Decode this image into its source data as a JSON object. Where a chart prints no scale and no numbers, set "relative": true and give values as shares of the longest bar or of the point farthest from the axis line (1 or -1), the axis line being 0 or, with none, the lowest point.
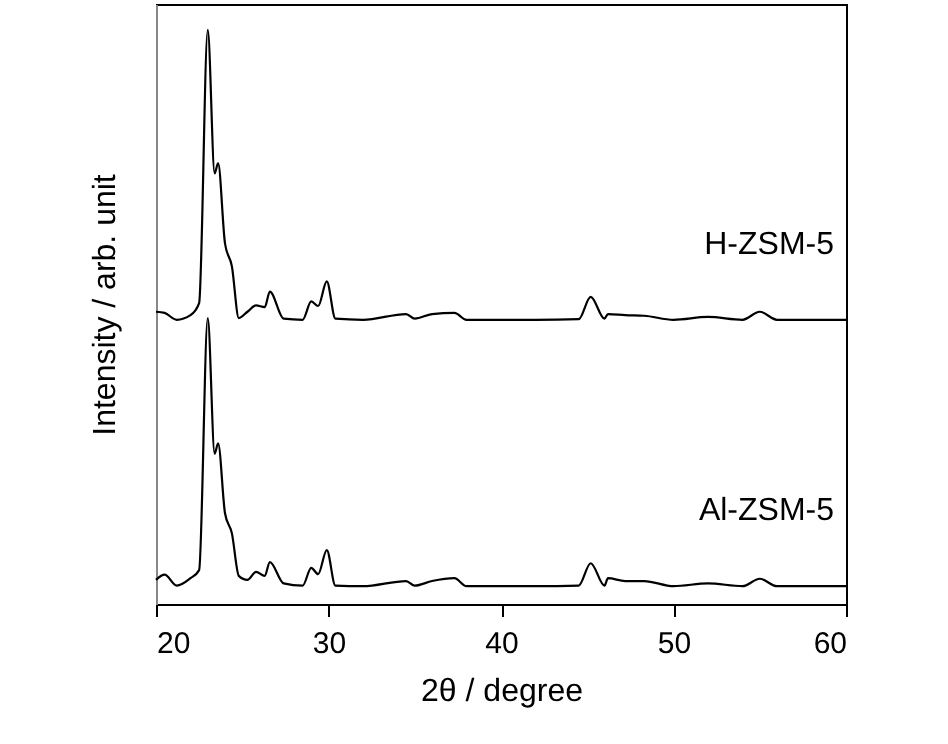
{
  "chart_data": {
    "type": "line",
    "xlabel": "2θ / degree",
    "ylabel": "Intensity / arb. unit",
    "relative": true,
    "xlim": [
      20,
      60
    ],
    "xticks": [
      20,
      30,
      40,
      50,
      60
    ],
    "series": [
      {
        "name": "H-ZSM-5",
        "color": "#000000",
        "x": [
          20,
          20.5,
          21.2,
          22,
          22.5,
          23,
          23.4,
          23.6,
          24,
          24.4,
          24.8,
          25.3,
          25.8,
          26.3,
          26.6,
          27.4,
          28.5,
          29,
          29.4,
          29.9,
          30.4,
          32,
          34.5,
          35,
          36,
          37.3,
          38,
          42,
          44.5,
          45.2,
          46,
          46.2,
          47.2,
          48.3,
          50,
          52,
          54,
          55,
          56,
          60
        ],
        "values": [
          0.509,
          0.507,
          0.495,
          0.503,
          0.524,
          1.0,
          0.75,
          0.768,
          0.628,
          0.588,
          0.498,
          0.509,
          0.52,
          0.517,
          0.544,
          0.497,
          0.495,
          0.527,
          0.519,
          0.562,
          0.497,
          0.495,
          0.505,
          0.497,
          0.505,
          0.507,
          0.495,
          0.495,
          0.496,
          0.535,
          0.497,
          0.505,
          0.503,
          0.502,
          0.495,
          0.5,
          0.495,
          0.509,
          0.495,
          0.495
        ]
      },
      {
        "name": "Al-ZSM-5",
        "color": "#000000",
        "x": [
          20,
          20.5,
          21.2,
          22,
          22.5,
          23,
          23.4,
          23.6,
          24,
          24.4,
          24.8,
          25.3,
          25.8,
          26.3,
          26.6,
          27.4,
          28.5,
          29,
          29.4,
          29.9,
          30.4,
          32,
          34.5,
          35,
          36,
          37.3,
          38,
          42,
          44.5,
          45.2,
          46,
          46.2,
          47.2,
          48.3,
          50,
          52,
          54,
          55,
          56,
          60
        ],
        "values": [
          0.042,
          0.051,
          0.032,
          0.045,
          0.059,
          0.498,
          0.262,
          0.28,
          0.158,
          0.123,
          0.049,
          0.042,
          0.056,
          0.049,
          0.073,
          0.036,
          0.032,
          0.063,
          0.052,
          0.094,
          0.032,
          0.031,
          0.04,
          0.032,
          0.04,
          0.045,
          0.031,
          0.031,
          0.032,
          0.071,
          0.032,
          0.045,
          0.04,
          0.04,
          0.031,
          0.036,
          0.031,
          0.044,
          0.031,
          0.031
        ]
      }
    ]
  }
}
